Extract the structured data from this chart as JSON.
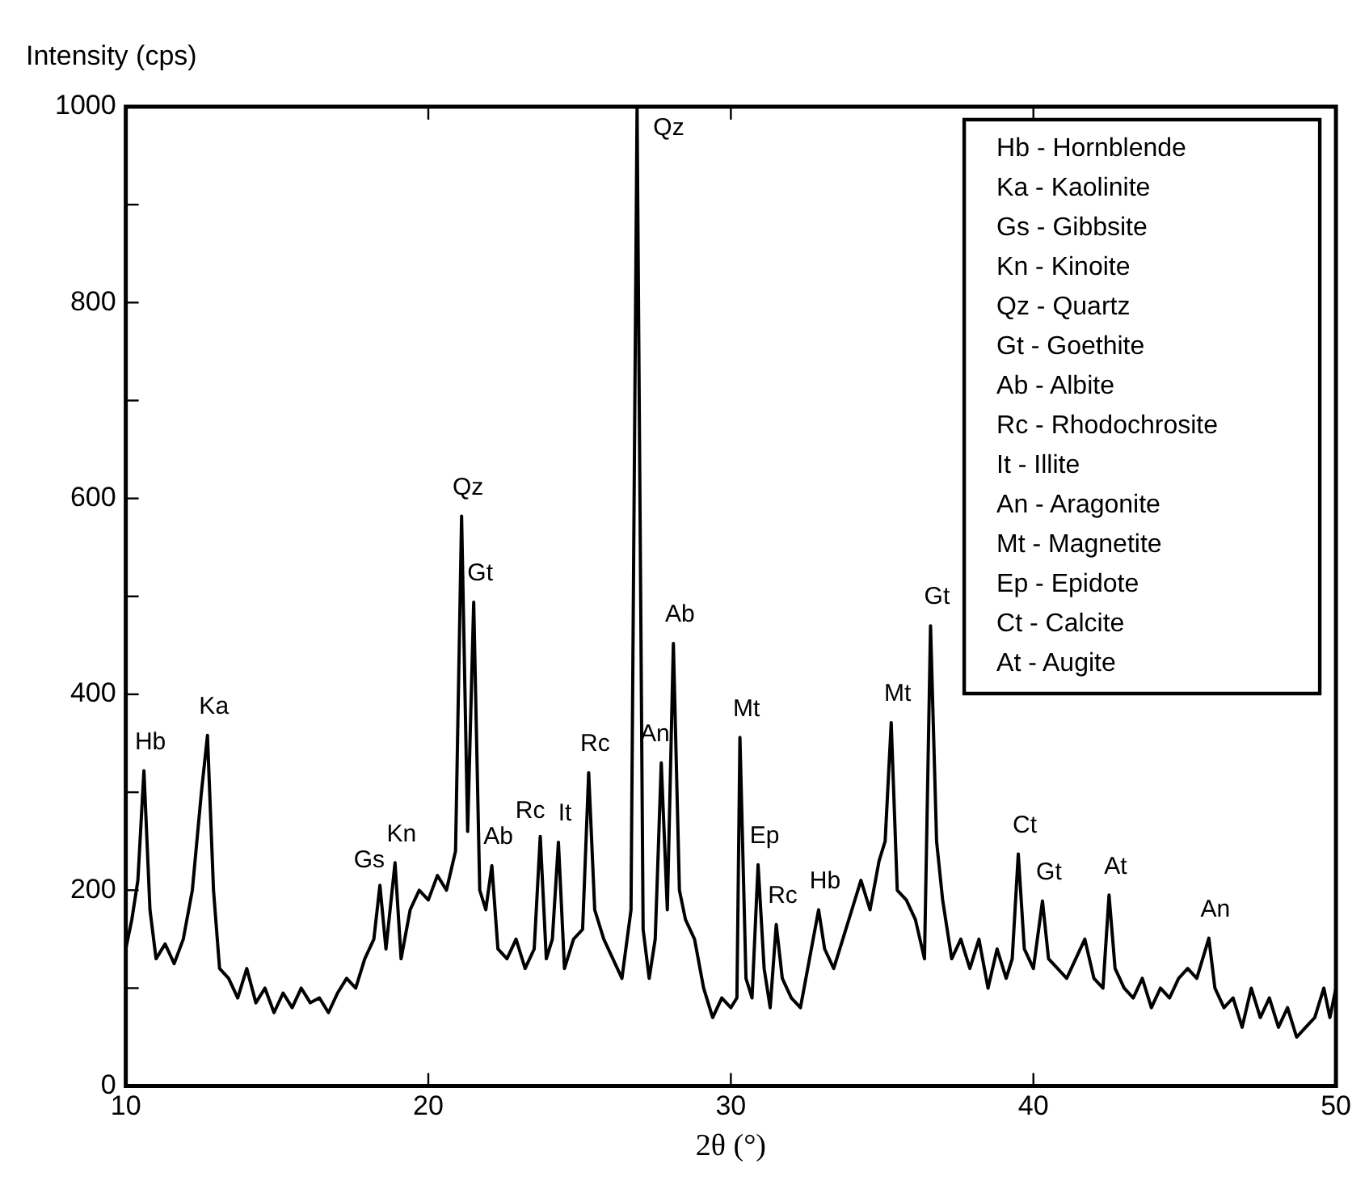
{
  "chart_data": {
    "type": "line",
    "ylabel": "Intensity (cps)",
    "xlabel": "2θ (°)",
    "xlim": [
      10,
      50
    ],
    "ylim": [
      0,
      1000
    ],
    "xticks": [
      10,
      20,
      30,
      40,
      50
    ],
    "yticks": [
      0,
      {
        "value": 100,
        "label": null
      },
      200,
      {
        "value": 300,
        "label": null
      },
      400,
      {
        "value": 500,
        "label": null
      },
      600,
      {
        "value": 700,
        "label": null
      },
      800,
      {
        "value": 900,
        "label": null
      },
      1000
    ],
    "grid": false,
    "legend": false,
    "marker": "none",
    "line_style": "solid",
    "series": [
      {
        "color": "#000000",
        "x": [
          10,
          10.2,
          10.4,
          10.6,
          10.8,
          11,
          11.3,
          11.6,
          11.9,
          12.2,
          12.5,
          12.7,
          12.9,
          13.1,
          13.4,
          13.7,
          14,
          14.3,
          14.6,
          14.9,
          15.2,
          15.5,
          15.8,
          16.1,
          16.4,
          16.7,
          17,
          17.3,
          17.6,
          17.9,
          18.2,
          18.4,
          18.6,
          18.9,
          19.1,
          19.4,
          19.7,
          20,
          20.3,
          20.6,
          20.9,
          21.1,
          21.3,
          21.5,
          21.7,
          21.9,
          22.1,
          22.3,
          22.6,
          22.9,
          23.2,
          23.5,
          23.7,
          23.9,
          24.1,
          24.3,
          24.5,
          24.8,
          25.1,
          25.3,
          25.5,
          25.8,
          26.1,
          26.4,
          26.7,
          26.9,
          27.1,
          27.3,
          27.5,
          27.7,
          27.9,
          28.1,
          28.3,
          28.5,
          28.8,
          29.1,
          29.4,
          29.7,
          30,
          30.2,
          30.3,
          30.5,
          30.7,
          30.9,
          31.1,
          31.3,
          31.5,
          31.7,
          32,
          32.3,
          32.6,
          32.9,
          33.1,
          33.4,
          33.7,
          34,
          34.3,
          34.6,
          34.9,
          35.1,
          35.3,
          35.5,
          35.8,
          36.1,
          36.4,
          36.6,
          36.8,
          37,
          37.3,
          37.6,
          37.9,
          38.2,
          38.5,
          38.8,
          39.1,
          39.3,
          39.5,
          39.7,
          40,
          40.3,
          40.5,
          40.8,
          41.1,
          41.4,
          41.7,
          42,
          42.3,
          42.5,
          42.7,
          43,
          43.3,
          43.6,
          43.9,
          44.2,
          44.5,
          44.8,
          45.1,
          45.4,
          45.8,
          46,
          46.3,
          46.6,
          46.9,
          47.2,
          47.5,
          47.8,
          48.1,
          48.4,
          48.7,
          49,
          49.3,
          49.6,
          49.8,
          50
        ],
        "values": [
          140,
          170,
          210,
          322,
          180,
          130,
          145,
          125,
          150,
          200,
          300,
          358,
          200,
          120,
          110,
          90,
          120,
          85,
          100,
          75,
          95,
          80,
          100,
          85,
          90,
          75,
          95,
          110,
          100,
          130,
          150,
          205,
          140,
          228,
          130,
          180,
          200,
          190,
          215,
          200,
          240,
          582,
          260,
          494,
          200,
          180,
          225,
          140,
          130,
          150,
          120,
          140,
          255,
          130,
          150,
          249,
          120,
          150,
          160,
          320,
          180,
          150,
          130,
          110,
          180,
          1000,
          160,
          110,
          150,
          330,
          180,
          452,
          200,
          170,
          150,
          100,
          70,
          90,
          80,
          90,
          356,
          110,
          90,
          226,
          120,
          80,
          165,
          110,
          90,
          80,
          130,
          180,
          140,
          120,
          150,
          180,
          210,
          180,
          230,
          250,
          371,
          200,
          190,
          170,
          130,
          470,
          250,
          190,
          130,
          150,
          120,
          150,
          100,
          140,
          110,
          130,
          237,
          140,
          120,
          189,
          130,
          120,
          110,
          130,
          150,
          110,
          100,
          195,
          120,
          100,
          90,
          110,
          80,
          100,
          90,
          110,
          120,
          110,
          151,
          100,
          80,
          90,
          60,
          100,
          70,
          90,
          60,
          80,
          50,
          60,
          70,
          100,
          70,
          100
        ],
        "name": null
      }
    ],
    "annotations": [
      {
        "text": "Hb",
        "x": 10.6,
        "y": 322
      },
      {
        "text": "Ka",
        "x": 12.7,
        "y": 358
      },
      {
        "text": "Gs",
        "x": 18.4,
        "y": 205
      },
      {
        "text": "Kn",
        "x": 18.9,
        "y": 228
      },
      {
        "text": "Qz",
        "x": 21.1,
        "y": 582
      },
      {
        "text": "Gt",
        "x": 21.5,
        "y": 494
      },
      {
        "text": "Ab",
        "x": 22.1,
        "y": 225
      },
      {
        "text": "Rc",
        "x": 23.7,
        "y": 255
      },
      {
        "text": "It",
        "x": 24.3,
        "y": 249
      },
      {
        "text": "Rc",
        "x": 25.3,
        "y": 320
      },
      {
        "text": "Qz",
        "x": 26.9,
        "y": 1000
      },
      {
        "text": "An",
        "x": 27.7,
        "y": 330
      },
      {
        "text": "Ab",
        "x": 28.1,
        "y": 452
      },
      {
        "text": "Mt",
        "x": 30.3,
        "y": 356
      },
      {
        "text": "Ep",
        "x": 30.9,
        "y": 226
      },
      {
        "text": "Rc",
        "x": 31.5,
        "y": 165
      },
      {
        "text": "Hb",
        "x": 32.9,
        "y": 180
      },
      {
        "text": "Mt",
        "x": 35.3,
        "y": 371
      },
      {
        "text": "Gt",
        "x": 36.6,
        "y": 470
      },
      {
        "text": "Ct",
        "x": 39.5,
        "y": 237
      },
      {
        "text": "Gt",
        "x": 40.3,
        "y": 189
      },
      {
        "text": "At",
        "x": 42.5,
        "y": 195
      },
      {
        "text": "An",
        "x": 45.8,
        "y": 151
      },
      "Hb - Hornblende",
      "Ka - Kaolinite",
      "Gs - Gibbsite",
      "Kn - Kinoite",
      "Qz - Quartz",
      "Gt - Goethite",
      "Ab - Albite",
      "Rc - Rhodochrosite",
      "It - Illite",
      "An - Aragonite",
      "Mt - Magnetite",
      "Ep - Epidote",
      "Ct - Calcite",
      "At - Augite"
    ]
  }
}
